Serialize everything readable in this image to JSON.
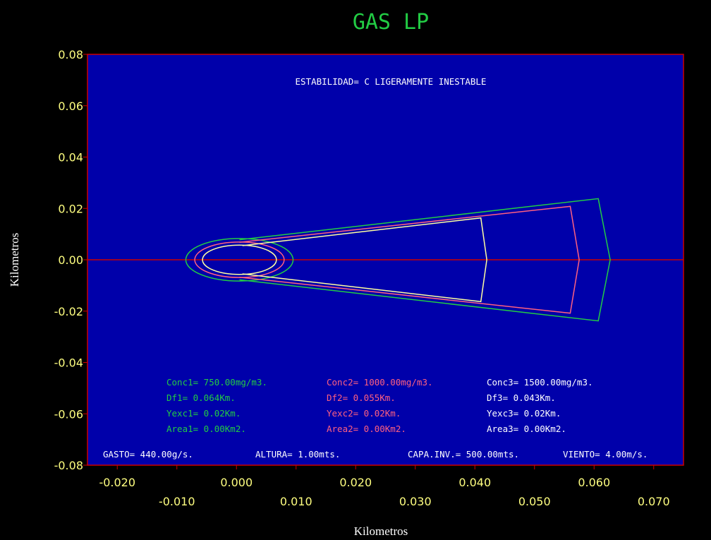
{
  "title": "GAS LP",
  "stability_text": "ESTABILIDAD= C LIGERAMENTE INESTABLE",
  "colors": {
    "background": "#000000",
    "plot_background": "#0000aa",
    "frame": "#cc0000",
    "title": "#22cc44",
    "ticks": "#ffff80",
    "series1": "#22cc44",
    "series2": "#ff6080",
    "series3": "#ffffa0",
    "info": "#ffffff"
  },
  "series_info": [
    {
      "conc": "Conc1= 750.00mg/m3.",
      "df": "Df1= 0.064Km.",
      "yexc": "Yexc1= 0.02Km.",
      "area": "Area1= 0.00Km2."
    },
    {
      "conc": "Conc2= 1000.00mg/m3.",
      "df": "Df2= 0.055Km.",
      "yexc": "Yexc2= 0.02Km.",
      "area": "Area2= 0.00Km2."
    },
    {
      "conc": "Conc3= 1500.00mg/m3.",
      "df": "Df3= 0.043Km.",
      "yexc": "Yexc3= 0.02Km.",
      "area": "Area3= 0.00Km2."
    }
  ],
  "footer": {
    "gasto": "GASTO= 440.00g/s.",
    "altura": "ALTURA= 1.00mts.",
    "capa": "CAPA.INV.= 500.00mts.",
    "viento": "VIENTO= 4.00m/s."
  },
  "chart_data": {
    "type": "line",
    "title": "GAS LP",
    "xlabel": "Kilometros",
    "ylabel": "Kilometros",
    "xlim": [
      -0.025,
      0.075
    ],
    "ylim": [
      -0.08,
      0.08
    ],
    "x_ticks": [
      "-0.020",
      "-0.010",
      "0.000",
      "0.010",
      "0.020",
      "0.030",
      "0.040",
      "0.050",
      "0.060",
      "0.070"
    ],
    "x_tick_values": [
      -0.02,
      -0.01,
      0.0,
      0.01,
      0.02,
      0.03,
      0.04,
      0.05,
      0.06,
      0.07
    ],
    "y_ticks": [
      "0.08",
      "0.06",
      "0.04",
      "0.02",
      "0.00",
      "-0.02",
      "-0.04",
      "-0.06",
      "-0.08"
    ],
    "y_tick_values": [
      0.08,
      0.06,
      0.04,
      0.02,
      0.0,
      -0.02,
      -0.04,
      -0.06,
      -0.08
    ],
    "reference_line_y": 0.0,
    "series": [
      {
        "color": "#22cc44",
        "source_circle": {
          "cx": 0.0005,
          "cy": 0.0,
          "r": 0.009
        },
        "outline": [
          [
            0.0005,
            0.0078
          ],
          [
            0.0607,
            0.0238
          ],
          [
            0.0627,
            0.0
          ],
          [
            0.0607,
            -0.0238
          ],
          [
            0.0005,
            -0.0078
          ]
        ]
      },
      {
        "color": "#ff6080",
        "source_circle": {
          "cx": 0.0005,
          "cy": 0.0,
          "r": 0.0075
        },
        "outline": [
          [
            0.0005,
            0.0068
          ],
          [
            0.056,
            0.0208
          ],
          [
            0.0575,
            0.0
          ],
          [
            0.056,
            -0.0208
          ],
          [
            0.0005,
            -0.0068
          ]
        ]
      },
      {
        "color": "#ffffa0",
        "source_circle": {
          "cx": 0.0005,
          "cy": 0.0,
          "r": 0.0062
        },
        "outline": [
          [
            0.001,
            0.0055
          ],
          [
            0.041,
            0.0163
          ],
          [
            0.042,
            0.0
          ],
          [
            0.041,
            -0.0163
          ],
          [
            0.001,
            -0.0055
          ]
        ]
      }
    ]
  }
}
